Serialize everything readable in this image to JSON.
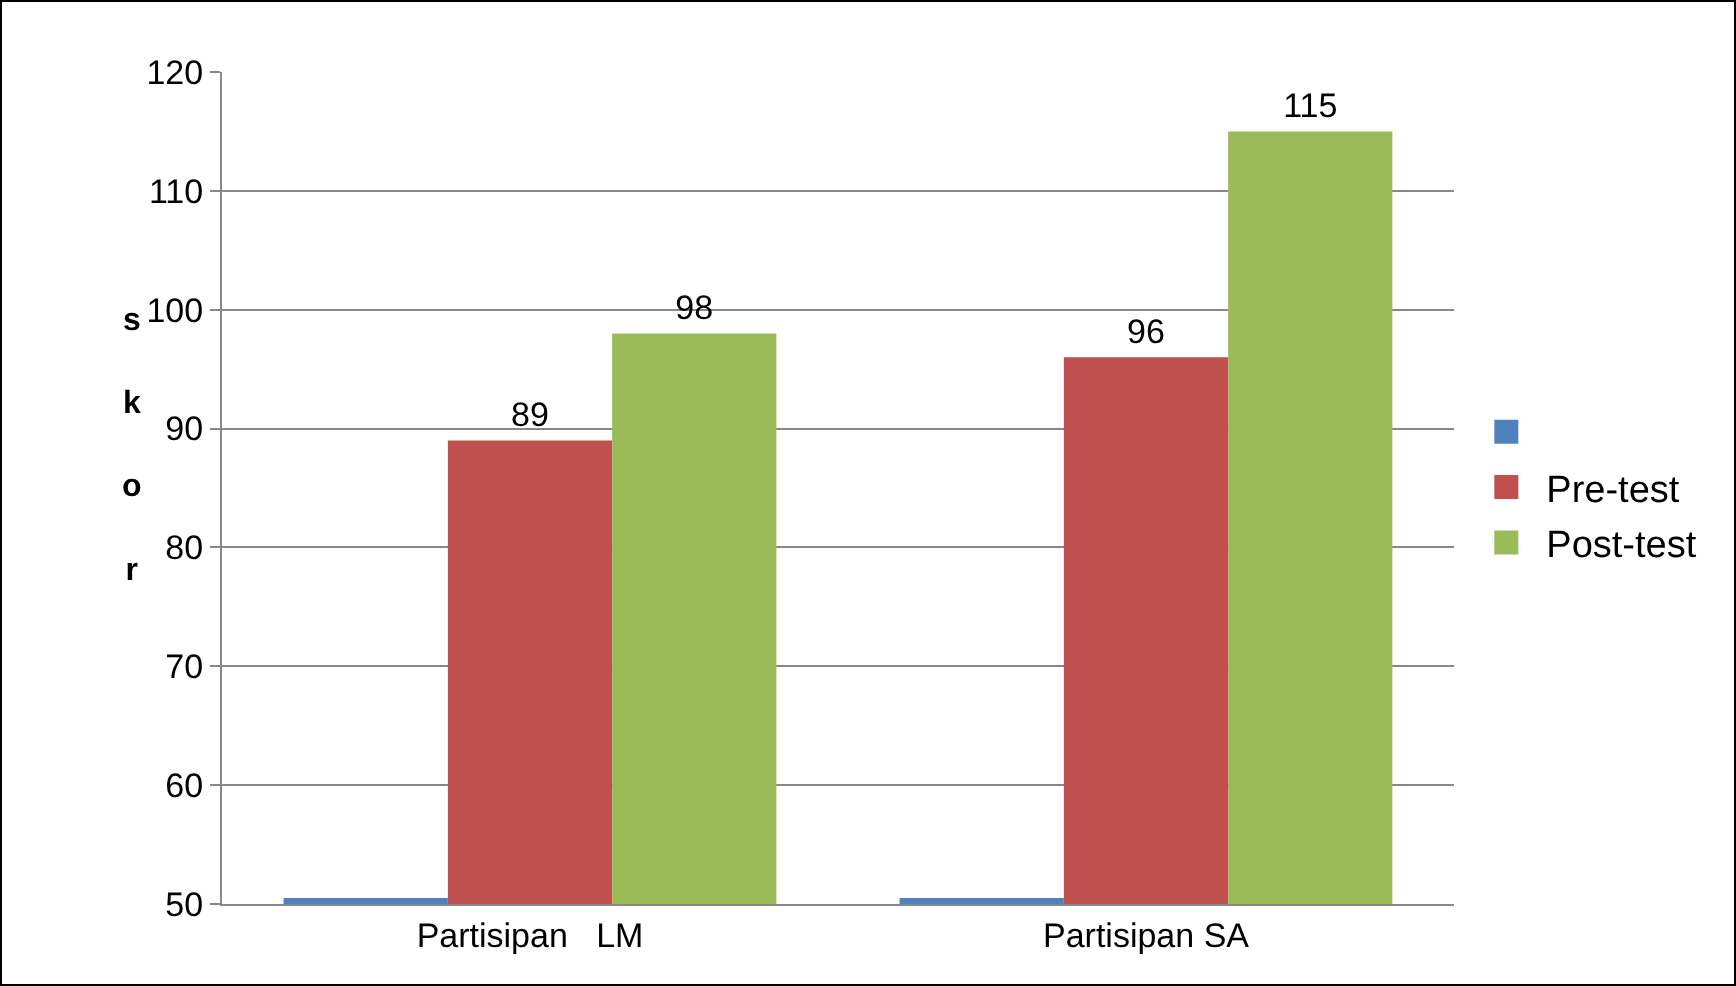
{
  "chart_data": {
    "type": "bar",
    "ylabel": "skor",
    "categories": [
      "Partisipan   LM",
      "Partisipan SA"
    ],
    "series": [
      {
        "color": "#4f81bd",
        "values": [
          50.5,
          50.5
        ],
        "value_labels": [
          null,
          null
        ]
      },
      {
        "name": "Pre-test",
        "color": "#c0504d",
        "values": [
          89,
          96
        ],
        "value_labels": [
          "89",
          "96"
        ]
      },
      {
        "name": "Post-test",
        "color": "#9bbb59",
        "values": [
          98,
          115
        ],
        "value_labels": [
          "98",
          "115"
        ]
      }
    ],
    "ylim": [
      50,
      120
    ],
    "yticks": [
      50,
      60,
      70,
      80,
      90,
      100,
      110,
      120
    ],
    "grid": "y",
    "legend": "right"
  }
}
